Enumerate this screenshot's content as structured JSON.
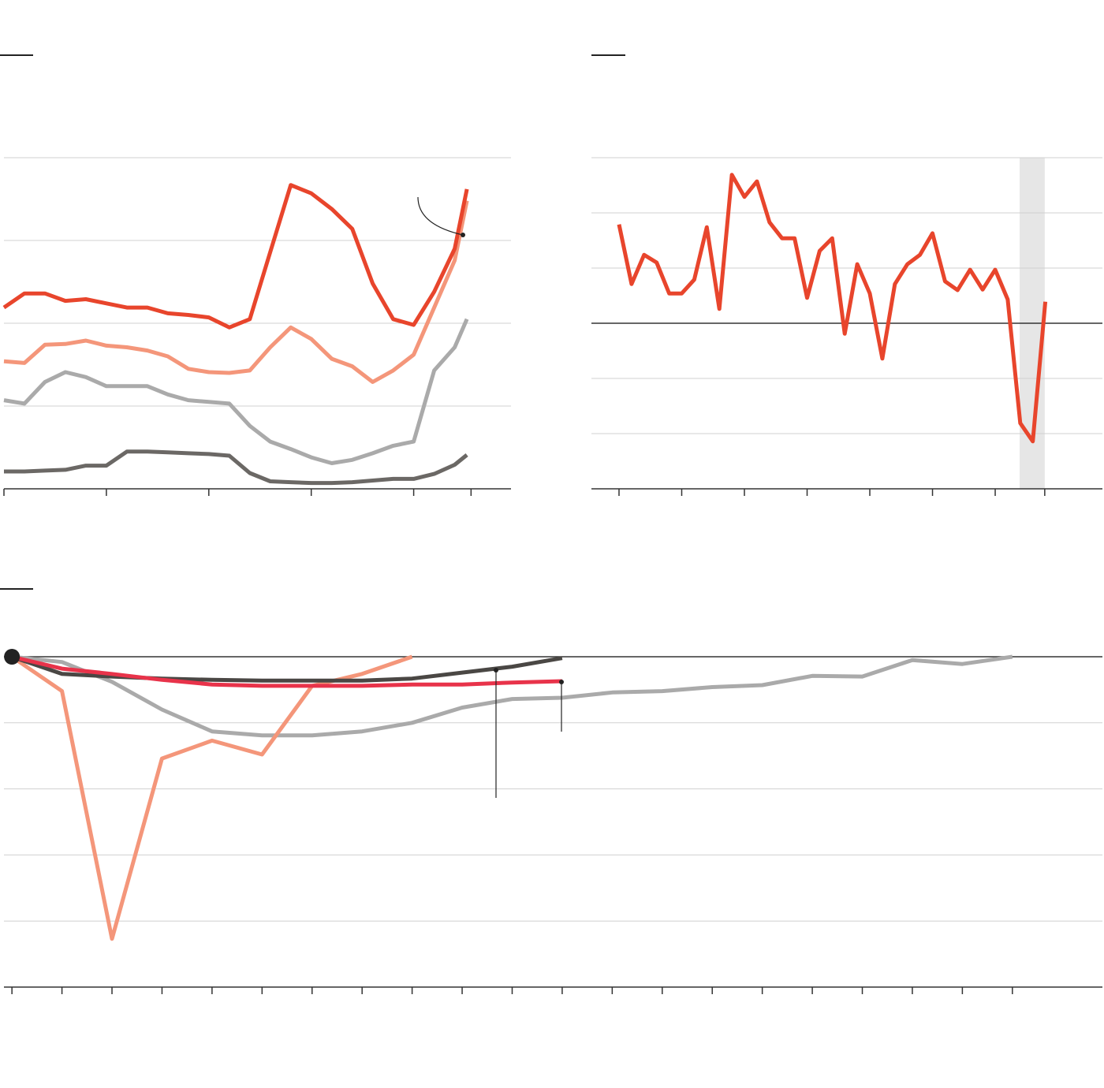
{
  "chart_data": [
    {
      "type": "line",
      "grid": true,
      "x": [
        0,
        0.2,
        0.4,
        0.6,
        0.8,
        1,
        1.2,
        1.4,
        1.6,
        1.8,
        2,
        2.2,
        2.4,
        2.6,
        2.8,
        3,
        3.2,
        3.4,
        3.6,
        3.8,
        4,
        4.2,
        4.4,
        4.52
      ],
      "xlim": [
        0,
        4.95
      ],
      "xticks": [
        0,
        1,
        2,
        3,
        4,
        4.56
      ],
      "ylim": [
        0,
        4
      ],
      "yticks": [
        0,
        1,
        2,
        3,
        4
      ],
      "series": [
        {
          "color": "#aaaaaa",
          "values": [
            1.07,
            1.03,
            1.29,
            1.41,
            1.35,
            1.24,
            1.24,
            1.24,
            1.14,
            1.07,
            1.05,
            1.03,
            0.76,
            0.57,
            0.48,
            0.38,
            0.31,
            0.35,
            0.43,
            0.52,
            0.57,
            1.43,
            1.71,
            2.05
          ]
        },
        {
          "color": "#6b6865",
          "values": [
            0.21,
            0.21,
            0.22,
            0.23,
            0.28,
            0.28,
            0.45,
            0.45,
            0.44,
            0.43,
            0.42,
            0.4,
            0.19,
            0.09,
            0.08,
            0.07,
            0.07,
            0.08,
            0.1,
            0.12,
            0.12,
            0.18,
            0.29,
            0.41
          ]
        },
        {
          "color": "#f4967a",
          "values": [
            1.54,
            1.52,
            1.74,
            1.75,
            1.79,
            1.73,
            1.71,
            1.67,
            1.6,
            1.45,
            1.41,
            1.4,
            1.43,
            1.71,
            1.95,
            1.81,
            1.57,
            1.48,
            1.29,
            1.43,
            1.62,
            2.19,
            2.76,
            3.48
          ]
        },
        {
          "color": "#e8452c",
          "values": [
            2.19,
            2.36,
            2.36,
            2.27,
            2.29,
            2.24,
            2.19,
            2.19,
            2.12,
            2.1,
            2.07,
            1.95,
            2.05,
            2.86,
            3.67,
            3.57,
            3.38,
            3.14,
            2.48,
            2.05,
            1.98,
            2.38,
            2.9,
            3.62
          ]
        }
      ]
    },
    {
      "type": "line",
      "grid": true,
      "zero_line": true,
      "x": [
        0,
        0.2,
        0.4,
        0.6,
        0.8,
        1,
        1.2,
        1.4,
        1.6,
        1.8,
        2,
        2.2,
        2.4,
        2.6,
        2.8,
        3,
        3.2,
        3.4,
        3.6,
        3.8,
        4,
        4.2,
        4.4,
        4.6,
        4.8,
        5,
        5.2,
        5.4,
        5.6,
        5.8,
        6,
        6.2,
        6.4,
        6.6,
        6.8
      ],
      "xlim": [
        -0.44,
        7.71
      ],
      "xticks": [
        0,
        1,
        2,
        3,
        4,
        5,
        6,
        6.79
      ],
      "ylim": [
        -3,
        3
      ],
      "yticks": [
        -3,
        -2,
        -1,
        0,
        1,
        2,
        3
      ],
      "shade": [
        6.39,
        6.79
      ],
      "shade_color": "#e6e6e6",
      "series": [
        {
          "color": "#e8452c",
          "values": [
            1.79,
            0.71,
            1.24,
            1.1,
            0.54,
            0.54,
            0.79,
            1.74,
            0.26,
            2.69,
            2.29,
            2.57,
            1.83,
            1.54,
            1.54,
            0.46,
            1.31,
            1.54,
            -0.19,
            1.07,
            0.54,
            -0.64,
            0.71,
            1.07,
            1.24,
            1.63,
            0.76,
            0.6,
            0.97,
            0.61,
            0.97,
            0.43,
            -1.81,
            -2.14,
            0.39
          ]
        }
      ]
    },
    {
      "type": "line",
      "grid": true,
      "zero_line": true,
      "start_marker": true,
      "x": [
        0,
        1,
        2,
        3,
        4,
        5,
        6,
        7,
        8,
        9,
        10,
        11,
        12,
        13,
        14,
        15,
        16,
        17,
        18,
        19,
        20
      ],
      "xlim": [
        -0.16,
        21.8
      ],
      "xticks": [
        0,
        1,
        2,
        3,
        4,
        5,
        6,
        7,
        8,
        9,
        10,
        11,
        12,
        13,
        14,
        15,
        16,
        17,
        18,
        19,
        20
      ],
      "ylim": [
        -5,
        0
      ],
      "yticks": [
        -5,
        -4,
        -3,
        -2,
        -1,
        0
      ],
      "series": [
        {
          "color": "#aaaaaa",
          "values": [
            0,
            -0.08,
            -0.38,
            -0.8,
            -1.13,
            -1.19,
            -1.19,
            -1.13,
            -1,
            -0.77,
            -0.64,
            -0.62,
            -0.54,
            -0.52,
            -0.46,
            -0.43,
            -0.29,
            -0.3,
            -0.05,
            -0.11,
            0
          ]
        },
        {
          "color": "#f4967a",
          "values": [
            0,
            -0.52,
            -4.27,
            -1.54,
            -1.27,
            -1.48,
            -0.44,
            -0.26,
            0,
            null,
            null,
            null,
            null,
            null,
            null,
            null,
            null,
            null,
            null,
            null,
            null
          ]
        },
        {
          "color": "#4a4744",
          "values": [
            0,
            -0.26,
            -0.3,
            -0.33,
            -0.35,
            -0.36,
            -0.36,
            -0.36,
            -0.33,
            -0.24,
            -0.15,
            -0.02,
            null,
            null,
            null,
            null,
            null,
            null,
            null,
            null,
            null
          ]
        },
        {
          "color": "#e8334a",
          "values": [
            0,
            -0.18,
            -0.26,
            -0.35,
            -0.42,
            -0.44,
            -0.44,
            -0.44,
            -0.42,
            -0.42,
            -0.39,
            -0.37,
            null,
            null,
            null,
            null,
            null,
            null,
            null,
            null,
            null
          ]
        }
      ]
    }
  ]
}
